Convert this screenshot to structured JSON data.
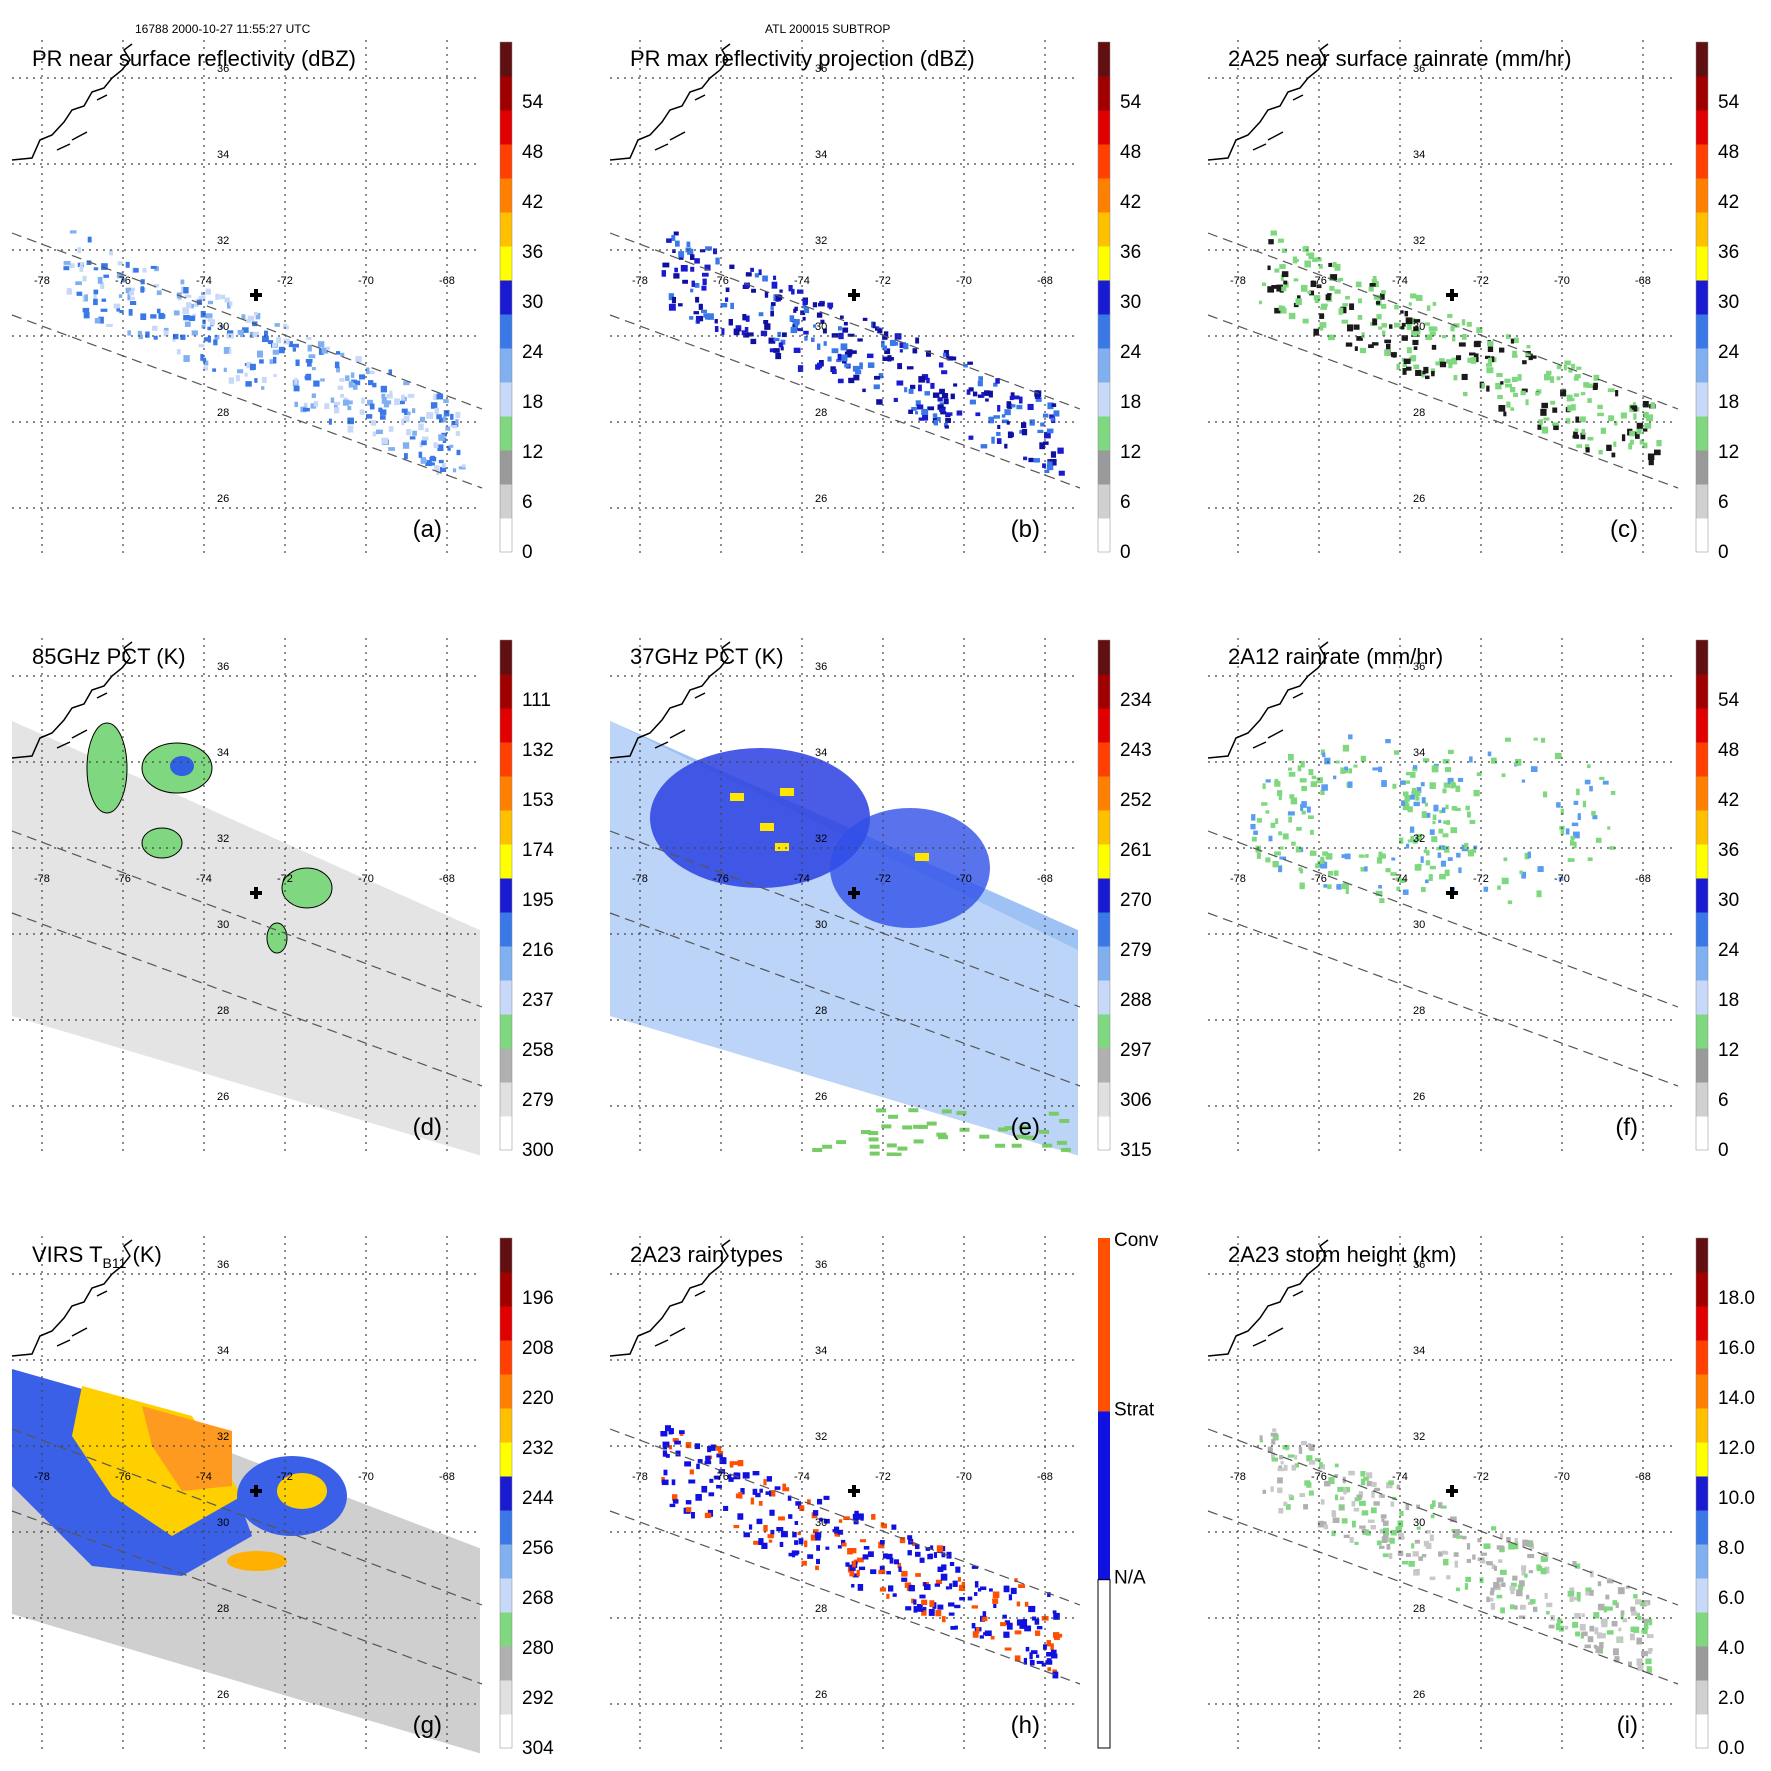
{
  "header": {
    "orbit_time": "16788 2000-10-27 11:55:27 UTC",
    "storm": "ATL 200015 SUBTROP"
  },
  "grid_labels": {
    "latitudes": [
      "36",
      "34",
      "32",
      "30",
      "28",
      "26"
    ],
    "longitudes": [
      "-78",
      "-76",
      "-74",
      "-72",
      "-70",
      "-68"
    ]
  },
  "panels": [
    {
      "id": "a",
      "title": "PR near surface reflectivity (dBZ)",
      "label": "(a)",
      "field": "swath",
      "colorbar": {
        "ticks": [
          "0",
          "6",
          "12",
          "18",
          "24",
          "30",
          "36",
          "42",
          "48",
          "54"
        ]
      }
    },
    {
      "id": "b",
      "title": "PR max reflectivity projection (dBZ)",
      "label": "(b)",
      "field": "swath",
      "colorbar": {
        "ticks": [
          "0",
          "6",
          "12",
          "18",
          "24",
          "30",
          "36",
          "42",
          "48",
          "54"
        ]
      }
    },
    {
      "id": "c",
      "title": "2A25 near surface rainrate (mm/hr)",
      "label": "(c)",
      "field": "swath",
      "colorbar": {
        "ticks": [
          "0",
          "6",
          "12",
          "18",
          "24",
          "30",
          "36",
          "42",
          "48",
          "54"
        ]
      }
    },
    {
      "id": "d",
      "title": "85GHz PCT (K)",
      "label": "(d)",
      "field": "wide-gray",
      "colorbar": {
        "ticks": [
          "300",
          "279",
          "258",
          "237",
          "216",
          "195",
          "174",
          "153",
          "132",
          "111"
        ]
      }
    },
    {
      "id": "e",
      "title": "37GHz PCT (K)",
      "label": "(e)",
      "field": "wide-blue",
      "colorbar": {
        "ticks": [
          "315",
          "306",
          "297",
          "288",
          "279",
          "270",
          "261",
          "252",
          "243",
          "234"
        ]
      }
    },
    {
      "id": "f",
      "title": "2A12 rainrate (mm/hr)",
      "label": "(f)",
      "field": "ring",
      "colorbar": {
        "ticks": [
          "0",
          "6",
          "12",
          "18",
          "24",
          "30",
          "36",
          "42",
          "48",
          "54"
        ]
      }
    },
    {
      "id": "g",
      "title": "VIRS T",
      "title_sub": "B11",
      "title_suffix": " (K)",
      "label": "(g)",
      "field": "ir",
      "colorbar": {
        "ticks": [
          "304",
          "292",
          "280",
          "268",
          "256",
          "244",
          "232",
          "220",
          "208",
          "196"
        ]
      }
    },
    {
      "id": "h",
      "title": "2A23 rain types",
      "label": "(h)",
      "field": "types",
      "colorbar": {
        "ticks": [
          "N/A",
          "Strat",
          "Conv"
        ]
      }
    },
    {
      "id": "i",
      "title": "2A23 storm height (km)",
      "label": "(i)",
      "field": "height",
      "colorbar": {
        "ticks": [
          "0.0",
          "2.0",
          "4.0",
          "6.0",
          "8.0",
          "10.0",
          "12.0",
          "14.0",
          "16.0",
          "18.0"
        ]
      }
    }
  ],
  "colors": {
    "dbz_scale": [
      "#ffffff",
      "#d0d0d0",
      "#9a9a9a",
      "#7fd87f",
      "#c8d8f8",
      "#80b0f0",
      "#3a78e8",
      "#1a1ad0",
      "#ffff00",
      "#ffc000",
      "#ff8000",
      "#ff4000",
      "#e00000",
      "#a00000",
      "#601010"
    ],
    "pct_scale": [
      "#ffffff",
      "#e0e0e0",
      "#b0b0b0",
      "#7fd87f",
      "#c8d8f8",
      "#80b0f0",
      "#3a78e8",
      "#1a1ad0",
      "#ffff00",
      "#ffc000",
      "#ff8000",
      "#ff4000",
      "#e00000",
      "#a00000",
      "#601010"
    ],
    "rain_types": {
      "na": "#ffffff",
      "strat": "#1010e0",
      "conv": "#ff5000"
    },
    "swath_edge": "#555555",
    "storm_center_marker": "#000000"
  }
}
